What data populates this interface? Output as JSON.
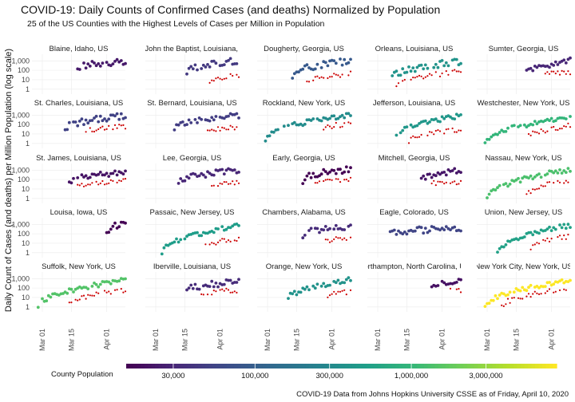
{
  "chart_data": {
    "type": "scatter",
    "title": "COVID-19: Daily Counts of Confirmed Cases (and deaths) Normalized by Population",
    "subtitle": "25 of the US Counties with the Highest Levels of Cases per Million in Population",
    "ylabel": "Daily Count of Cases (and deaths) per Million Population (log scale)",
    "y_scale": "log",
    "ylim": [
      0.3,
      5000
    ],
    "y_ticks": [
      1,
      10,
      100,
      1000
    ],
    "y_tick_labels": [
      "1",
      "10",
      "100",
      "1,000"
    ],
    "x_range": [
      "2020-02-25",
      "2020-04-10"
    ],
    "x_ticks": [
      "2020-03-01",
      "2020-03-15",
      "2020-04-01"
    ],
    "x_tick_labels": [
      "Mar 01",
      "Mar 15",
      "Apr 01"
    ],
    "grid": true,
    "caption": "COVID-19 Data from Johns Hopkins University CSSE as of Friday, April 10, 2020",
    "legend": {
      "title": "County Population",
      "position": "bottom",
      "log_range": [
        15000,
        8500000
      ],
      "tick_values": [
        30000,
        100000,
        300000,
        1000000,
        3000000
      ],
      "tick_labels": [
        "30,000",
        "100,000",
        "300,000",
        "1,000,000",
        "3,000,000"
      ]
    },
    "series_colors": {
      "deaths": "#cc0000"
    },
    "panels": [
      {
        "title": "Blaine, Idaho, US",
        "population": 23000,
        "start": "2020-03-18",
        "cases_base": 150,
        "cases_end": 900,
        "deaths": false
      },
      {
        "title": "St. John the Baptist, Louisiana, US",
        "population": 43000,
        "start": "2020-03-16",
        "cases_base": 60,
        "cases_end": 1100,
        "deaths": true,
        "deaths_start": "2020-03-27",
        "deaths_base": 6,
        "deaths_end": 30
      },
      {
        "title": "Dougherty, Georgia, US",
        "population": 88000,
        "start": "2020-03-13",
        "cases_base": 30,
        "cases_end": 1000,
        "deaths": true,
        "deaths_start": "2020-03-20",
        "deaths_base": 8,
        "deaths_end": 40
      },
      {
        "title": "Orleans, Louisiana, US",
        "population": 390000,
        "start": "2020-03-08",
        "cases_base": 15,
        "cases_end": 900,
        "deaths": true,
        "deaths_start": "2020-03-10",
        "deaths_base": 3,
        "deaths_end": 70
      },
      {
        "title": "Sumter, Georgia, US",
        "population": 30000,
        "start": "2020-03-20",
        "cases_base": 80,
        "cases_end": 900,
        "deaths": true,
        "deaths_start": "2020-03-29",
        "deaths_base": 30,
        "deaths_end": 60
      },
      {
        "title": "St. Charles, Louisiana, US",
        "population": 52000,
        "start": "2020-03-12",
        "cases_base": 30,
        "cases_end": 900,
        "deaths": true,
        "deaths_start": "2020-03-22",
        "deaths_base": 20,
        "deaths_end": 60
      },
      {
        "title": "St. Bernard, Louisiana, US",
        "population": 47000,
        "start": "2020-03-10",
        "cases_base": 40,
        "cases_end": 900,
        "deaths": true,
        "deaths_start": "2020-03-26",
        "deaths_base": 15,
        "deaths_end": 50
      },
      {
        "title": "Rockland, New York, US",
        "population": 325000,
        "start": "2020-02-29",
        "cases_base": 3,
        "cases_end": 1000,
        "deaths": true,
        "deaths_start": "2020-03-28",
        "deaths_base": 40,
        "deaths_end": 120
      },
      {
        "title": "Jefferson, Louisiana, US",
        "population": 430000,
        "start": "2020-03-10",
        "cases_base": 5,
        "cases_end": 900,
        "deaths": true,
        "deaths_start": "2020-03-16",
        "deaths_base": 2,
        "deaths_end": 30
      },
      {
        "title": "Westchester, New York, US",
        "population": 970000,
        "start": "2020-02-29",
        "cases_base": 1,
        "cases_end": 700,
        "deaths": true,
        "deaths_start": "2020-03-20",
        "deaths_base": 3,
        "deaths_end": 80
      },
      {
        "title": "St. James, Louisiana, US",
        "population": 21000,
        "start": "2020-03-14",
        "cases_base": 60,
        "cases_end": 500,
        "deaths": true,
        "deaths_start": "2020-03-18",
        "deaths_base": 20,
        "deaths_end": 80
      },
      {
        "title": "Lee, Georgia, US",
        "population": 30000,
        "start": "2020-03-12",
        "cases_base": 60,
        "cases_end": 900,
        "deaths": true,
        "deaths_start": "2020-03-28",
        "deaths_base": 30,
        "deaths_end": 40
      },
      {
        "title": "Early, Georgia, US",
        "population": 10000,
        "start": "2020-03-18",
        "cases_base": 80,
        "cases_end": 1300,
        "deaths": true,
        "deaths_start": "2020-03-24",
        "deaths_base": 60,
        "deaths_end": 100
      },
      {
        "title": "Mitchell, Georgia, US",
        "population": 22000,
        "start": "2020-03-22",
        "cases_base": 80,
        "cases_end": 900,
        "deaths": true,
        "deaths_start": "2020-03-27",
        "deaths_base": 40,
        "deaths_end": 60
      },
      {
        "title": "Nassau, New York, US",
        "population": 1350000,
        "start": "2020-03-01",
        "cases_base": 1,
        "cases_end": 1200,
        "deaths": true,
        "deaths_start": "2020-03-20",
        "deaths_base": 2,
        "deaths_end": 100
      },
      {
        "title": "Louisa, Iowa, US",
        "population": 11000,
        "start": "2020-04-01",
        "cases_base": 150,
        "cases_end": 1500,
        "deaths": false
      },
      {
        "title": "Passaic, New Jersey, US",
        "population": 500000,
        "start": "2020-03-04",
        "cases_base": 1,
        "cases_end": 700,
        "deaths": true,
        "deaths_start": "2020-03-25",
        "deaths_base": 5,
        "deaths_end": 30
      },
      {
        "title": "Chambers, Alabama, US",
        "population": 33000,
        "start": "2020-03-18",
        "cases_base": 80,
        "cases_end": 500,
        "deaths": true,
        "deaths_start": "2020-03-29",
        "deaths_base": 20,
        "deaths_end": 30
      },
      {
        "title": "Eagle, Colorado, US",
        "population": 55000,
        "start": "2020-03-07",
        "cases_base": 100,
        "cases_end": 400,
        "deaths": false
      },
      {
        "title": "Union, New Jersey, US",
        "population": 560000,
        "start": "2020-03-06",
        "cases_base": 1,
        "cases_end": 800,
        "deaths": true,
        "deaths_start": "2020-03-22",
        "deaths_base": 3,
        "deaths_end": 60
      },
      {
        "title": "Suffolk, New York, US",
        "population": 1480000,
        "start": "2020-02-28",
        "cases_base": 1,
        "cases_end": 700,
        "deaths": true,
        "deaths_start": "2020-03-14",
        "deaths_base": 2,
        "deaths_end": 60
      },
      {
        "title": "Iberville, Louisiana, US",
        "population": 33000,
        "start": "2020-03-15",
        "cases_base": 40,
        "cases_end": 500,
        "deaths": true,
        "deaths_start": "2020-03-23",
        "deaths_base": 15,
        "deaths_end": 60
      },
      {
        "title": "Orange, New York, US",
        "population": 385000,
        "start": "2020-03-09",
        "cases_base": 3,
        "cases_end": 800,
        "deaths": true,
        "deaths_start": "2020-03-30",
        "deaths_base": 15,
        "deaths_end": 40
      },
      {
        "title": "Northampton, North Carolina, US",
        "population": 20000,
        "start": "2020-03-27",
        "cases_base": 80,
        "cases_end": 500,
        "deaths": true,
        "deaths_start": "2020-04-05",
        "deaths_base": 50,
        "deaths_end": 60
      },
      {
        "title": "New York City, New York, US",
        "population": 8400000,
        "start": "2020-02-29",
        "cases_base": 1,
        "cases_end": 700,
        "deaths": true,
        "deaths_start": "2020-03-08",
        "deaths_base": 1,
        "deaths_end": 100
      }
    ]
  }
}
